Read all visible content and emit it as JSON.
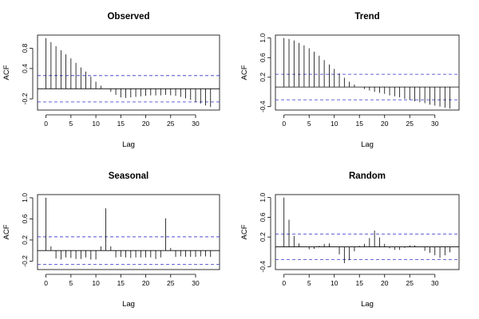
{
  "chart_data": [
    {
      "type": "bar",
      "title": "Observed",
      "xlabel": "Lag",
      "ylabel": "ACF",
      "xlim": [
        -1.7,
        34.8
      ],
      "ylim": [
        -0.42,
        1.06
      ],
      "xticks": [
        0,
        5,
        10,
        15,
        20,
        25,
        30
      ],
      "xtick_labels": [
        "0",
        "5",
        "10",
        "15",
        "20",
        "25",
        "30"
      ],
      "yticks": [
        -0.2,
        0.4,
        0.8
      ],
      "ytick_labels": [
        "-0.2",
        "0.4",
        "0.8"
      ],
      "ci": 0.26,
      "x": [
        0,
        1,
        2,
        3,
        4,
        5,
        6,
        7,
        8,
        9,
        10,
        11,
        12,
        13,
        14,
        15,
        16,
        17,
        18,
        19,
        20,
        21,
        22,
        23,
        24,
        25,
        26,
        27,
        28,
        29,
        30,
        31,
        32,
        33
      ],
      "values": [
        1.0,
        0.92,
        0.84,
        0.76,
        0.68,
        0.6,
        0.51,
        0.42,
        0.34,
        0.24,
        0.14,
        0.06,
        0.0,
        -0.06,
        -0.12,
        -0.17,
        -0.18,
        -0.17,
        -0.16,
        -0.15,
        -0.14,
        -0.13,
        -0.13,
        -0.13,
        -0.12,
        -0.13,
        -0.14,
        -0.16,
        -0.19,
        -0.22,
        -0.26,
        -0.29,
        -0.33,
        -0.36
      ]
    },
    {
      "type": "bar",
      "title": "Trend",
      "xlabel": "Lag",
      "ylabel": "ACF",
      "xlim": [
        -1.7,
        34.8
      ],
      "ylim": [
        -0.47,
        1.06
      ],
      "xticks": [
        0,
        5,
        10,
        15,
        20,
        25,
        30
      ],
      "xtick_labels": [
        "0",
        "5",
        "10",
        "15",
        "20",
        "25",
        "30"
      ],
      "yticks": [
        -0.4,
        0.2,
        0.6,
        1.0
      ],
      "ytick_labels": [
        "-0.4",
        "0.2",
        "0.6",
        "1.0"
      ],
      "ci": 0.26,
      "x": [
        0,
        1,
        2,
        3,
        4,
        5,
        6,
        7,
        8,
        9,
        10,
        11,
        12,
        13,
        14,
        15,
        16,
        17,
        18,
        19,
        20,
        21,
        22,
        23,
        24,
        25,
        26,
        27,
        28,
        29,
        30,
        31,
        32,
        33
      ],
      "values": [
        1.0,
        0.98,
        0.95,
        0.9,
        0.85,
        0.79,
        0.72,
        0.64,
        0.55,
        0.46,
        0.37,
        0.28,
        0.19,
        0.11,
        0.05,
        0.0,
        -0.04,
        -0.07,
        -0.1,
        -0.12,
        -0.14,
        -0.17,
        -0.19,
        -0.21,
        -0.24,
        -0.26,
        -0.29,
        -0.31,
        -0.33,
        -0.36,
        -0.38,
        -0.4,
        -0.42,
        -0.44
      ]
    },
    {
      "type": "bar",
      "title": "Seasonal",
      "xlabel": "Lag",
      "ylabel": "ACF",
      "xlim": [
        -1.7,
        34.8
      ],
      "ylim": [
        -0.36,
        1.06
      ],
      "xticks": [
        0,
        5,
        10,
        15,
        20,
        25,
        30
      ],
      "xtick_labels": [
        "0",
        "5",
        "10",
        "15",
        "20",
        "25",
        "30"
      ],
      "yticks": [
        -0.2,
        0.2,
        0.6,
        1.0
      ],
      "ytick_labels": [
        "-0.2",
        "0.2",
        "0.6",
        "1.0"
      ],
      "ci": 0.26,
      "x": [
        0,
        1,
        2,
        3,
        4,
        5,
        6,
        7,
        8,
        9,
        10,
        11,
        12,
        13,
        14,
        15,
        16,
        17,
        18,
        19,
        20,
        21,
        22,
        23,
        24,
        25,
        26,
        27,
        28,
        29,
        30,
        31,
        32,
        33
      ],
      "values": [
        1.0,
        0.08,
        -0.15,
        -0.17,
        -0.13,
        -0.14,
        -0.16,
        -0.16,
        -0.13,
        -0.17,
        -0.17,
        0.08,
        0.8,
        0.08,
        -0.13,
        -0.12,
        -0.13,
        -0.14,
        -0.13,
        -0.13,
        -0.13,
        -0.13,
        -0.16,
        -0.13,
        0.61,
        0.05,
        -0.12,
        -0.11,
        -0.12,
        -0.12,
        -0.12,
        -0.11,
        -0.11,
        -0.12
      ]
    },
    {
      "type": "bar",
      "title": "Random",
      "xlabel": "Lag",
      "ylabel": "ACF",
      "xlim": [
        -1.7,
        34.8
      ],
      "ylim": [
        -0.46,
        1.06
      ],
      "xticks": [
        0,
        5,
        10,
        15,
        20,
        25,
        30
      ],
      "xtick_labels": [
        "0",
        "5",
        "10",
        "15",
        "20",
        "25",
        "30"
      ],
      "yticks": [
        -0.4,
        0.2,
        0.6,
        1.0
      ],
      "ytick_labels": [
        "-0.4",
        "0.2",
        "0.6",
        "1.0"
      ],
      "ci": 0.26,
      "x": [
        0,
        1,
        2,
        3,
        4,
        5,
        6,
        7,
        8,
        9,
        10,
        11,
        12,
        13,
        14,
        15,
        16,
        17,
        18,
        19,
        20,
        21,
        22,
        23,
        24,
        25,
        26,
        27,
        28,
        29,
        30,
        31,
        32,
        33
      ],
      "values": [
        1.0,
        0.55,
        0.22,
        0.07,
        0.0,
        -0.05,
        -0.04,
        0.02,
        0.06,
        0.07,
        0.0,
        -0.15,
        -0.33,
        -0.27,
        -0.09,
        0.02,
        0.06,
        0.18,
        0.33,
        0.19,
        0.06,
        -0.03,
        -0.06,
        -0.06,
        -0.02,
        0.03,
        0.03,
        0.0,
        -0.08,
        -0.12,
        -0.17,
        -0.22,
        -0.17,
        -0.11
      ]
    }
  ],
  "style": {
    "bar_color": "#000000",
    "ci_color": "#3333cc",
    "axis_color": "#000000"
  }
}
